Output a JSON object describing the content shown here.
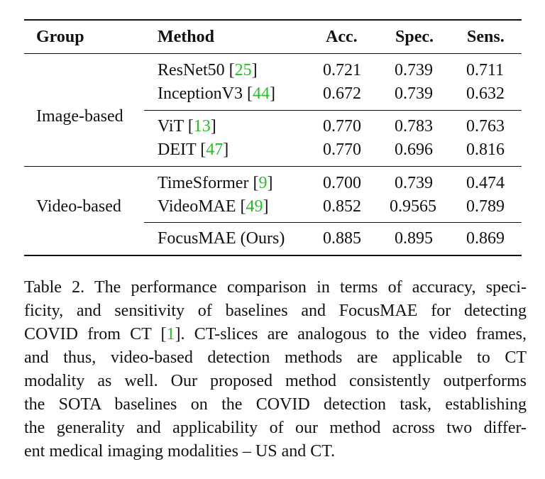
{
  "table": {
    "headers": {
      "group": "Group",
      "method": "Method",
      "acc": "Acc.",
      "spec": "Spec.",
      "sens": "Sens."
    },
    "groups": {
      "image": "Image-based",
      "video": "Video-based"
    },
    "rows": [
      {
        "method": "ResNet50 [",
        "ref": "25",
        "close": "]",
        "acc": "0.721",
        "spec": "0.739",
        "sens": "0.711"
      },
      {
        "method": "InceptionV3 [",
        "ref": "44",
        "close": "]",
        "acc": "0.672",
        "spec": "0.739",
        "sens": "0.632"
      },
      {
        "method": "ViT [",
        "ref": "13",
        "close": "]",
        "acc": "0.770",
        "spec": "0.783",
        "sens": "0.763"
      },
      {
        "method": "DEIT [",
        "ref": "47",
        "close": "]",
        "acc": "0.770",
        "spec": "0.696",
        "sens": "0.816"
      },
      {
        "method": "TimeSformer [",
        "ref": "9",
        "close": "]",
        "acc": "0.700",
        "spec": "0.739",
        "sens": "0.474"
      },
      {
        "method": "VideoMAE [",
        "ref": "49",
        "close": "]",
        "acc": "0.852",
        "spec": "0.9565",
        "sens": "0.789"
      },
      {
        "method": "FocusMAE (Ours)",
        "ref": "",
        "close": "",
        "acc": "0.885",
        "spec": "0.895",
        "sens": "0.869"
      }
    ]
  },
  "caption": {
    "lines": [
      {
        "text": "Table 2. The performance comparison in terms of accuracy, speci-"
      },
      {
        "text": "ficity, and sensitivity of baselines and FocusMAE for detecting"
      },
      {
        "pre": "COVID from CT [",
        "ref": "1",
        "post": "]. CT-slices are analogous to the video frames,"
      },
      {
        "text": "and thus, video-based detection methods are applicable to CT"
      },
      {
        "text": "modality as well. Our proposed method consistently outperforms"
      },
      {
        "text": "the SOTA baselines on the COVID detection task, establishing"
      },
      {
        "text": "the generality and applicability of our method across two differ-"
      },
      {
        "text": "ent medical imaging modalities – US and CT."
      }
    ]
  },
  "colors": {
    "reference_link": "#22c222",
    "text": "#111111",
    "background": "#ffffff"
  }
}
